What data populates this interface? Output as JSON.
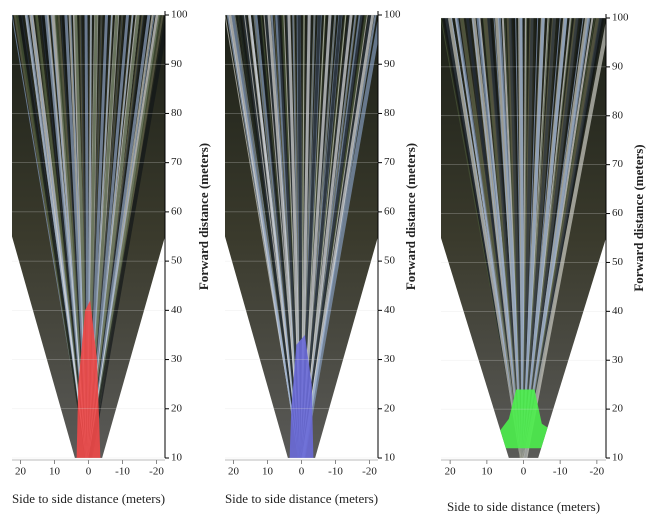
{
  "panels": [
    {
      "highlight_color": "#f04848",
      "xlim": [
        22.5,
        -22.5
      ],
      "ylim": [
        10,
        100
      ],
      "xticks": [
        20,
        10,
        0,
        -10,
        -20
      ],
      "yticks": [
        10,
        20,
        30,
        40,
        50,
        60,
        70,
        80,
        90,
        100
      ],
      "xlabel": "Side to side distance (meters)",
      "ylabel": "Forward distance (meters)"
    },
    {
      "highlight_color": "#6a6ad8",
      "xlim": [
        22.5,
        -22.5
      ],
      "ylim": [
        10,
        100
      ],
      "xticks": [
        20,
        10,
        0,
        -10,
        -20
      ],
      "yticks": [
        10,
        20,
        30,
        40,
        50,
        60,
        70,
        80,
        90,
        100
      ],
      "xlabel": "Side to side distance (meters)",
      "ylabel": "Forward distance (meters)"
    },
    {
      "highlight_color": "#4cf04c",
      "xlim": [
        22.5,
        -22.5
      ],
      "ylim": [
        10,
        100
      ],
      "xticks": [
        20,
        10,
        0,
        -10,
        -20
      ],
      "yticks": [
        10,
        20,
        30,
        40,
        50,
        60,
        70,
        80,
        90,
        100
      ],
      "xlabel": "Side to side distance (meters)",
      "ylabel": "Forward distance (meters)"
    }
  ]
}
